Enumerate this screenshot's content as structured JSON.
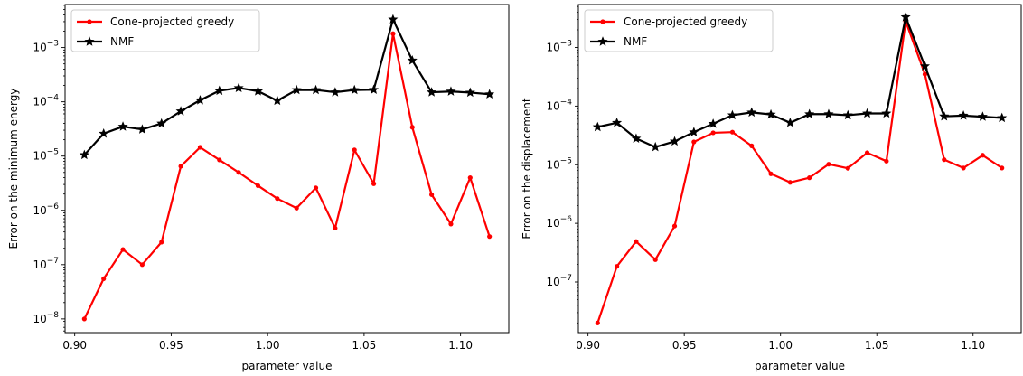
{
  "chart_data": [
    {
      "type": "line",
      "xlabel": "parameter value",
      "ylabel": "Error on the minimum energy",
      "yscale": "log",
      "xlim": [
        0.895,
        1.125
      ],
      "ylim": [
        5.6e-09,
        0.0062
      ],
      "xticks": [
        0.9,
        0.95,
        1.0,
        1.05,
        1.1
      ],
      "xtick_labels": [
        "0.90",
        "0.95",
        "1.00",
        "1.05",
        "1.10"
      ],
      "yticks": [
        1e-08,
        1e-07,
        1e-06,
        1e-05,
        0.0001,
        0.001
      ],
      "ytick_labels": [
        {
          "base": "10",
          "exp": "−8"
        },
        {
          "base": "10",
          "exp": "−7"
        },
        {
          "base": "10",
          "exp": "−6"
        },
        {
          "base": "10",
          "exp": "−5"
        },
        {
          "base": "10",
          "exp": "−4"
        },
        {
          "base": "10",
          "exp": "−3"
        }
      ],
      "legend": "upper-left",
      "grid": false,
      "x": [
        0.905,
        0.915,
        0.925,
        0.935,
        0.945,
        0.955,
        0.965,
        0.975,
        0.985,
        0.995,
        1.005,
        1.015,
        1.025,
        1.035,
        1.045,
        1.055,
        1.065,
        1.075,
        1.085,
        1.095,
        1.105,
        1.115
      ],
      "series": [
        {
          "name": "Cone-projected greedy",
          "color": "#ff0000",
          "marker": "dot",
          "values": [
            1e-08,
            5.5e-08,
            1.9e-07,
            1e-07,
            2.6e-07,
            6.5e-06,
            1.45e-05,
            8.5e-06,
            5e-06,
            2.85e-06,
            1.65e-06,
            1.1e-06,
            2.6e-06,
            4.7e-07,
            1.3e-05,
            3.1e-06,
            0.0018,
            3.4e-05,
            1.95e-06,
            5.6e-07,
            4e-06,
            3.3e-07
          ]
        },
        {
          "name": "NMF",
          "color": "#000000",
          "marker": "star",
          "values": [
            1.05e-05,
            2.6e-05,
            3.5e-05,
            3.1e-05,
            4e-05,
            6.7e-05,
            0.000107,
            0.00016,
            0.00018,
            0.000157,
            0.000105,
            0.000165,
            0.000165,
            0.00015,
            0.000165,
            0.000167,
            0.0033,
            0.00058,
            0.00015,
            0.000155,
            0.000148,
            0.000138
          ]
        }
      ]
    },
    {
      "type": "line",
      "xlabel": "parameter value",
      "ylabel": "Error on the displacement",
      "yscale": "log",
      "xlim": [
        0.895,
        1.125
      ],
      "ylim": [
        1.37e-08,
        0.0054
      ],
      "xticks": [
        0.9,
        0.95,
        1.0,
        1.05,
        1.1
      ],
      "xtick_labels": [
        "0.90",
        "0.95",
        "1.00",
        "1.05",
        "1.10"
      ],
      "yticks": [
        1e-07,
        1e-06,
        1e-05,
        0.0001,
        0.001
      ],
      "ytick_labels": [
        {
          "base": "10",
          "exp": "−7"
        },
        {
          "base": "10",
          "exp": "−6"
        },
        {
          "base": "10",
          "exp": "−5"
        },
        {
          "base": "10",
          "exp": "−4"
        },
        {
          "base": "10",
          "exp": "−3"
        }
      ],
      "legend": "upper-left",
      "grid": false,
      "x": [
        0.905,
        0.915,
        0.925,
        0.935,
        0.945,
        0.955,
        0.965,
        0.975,
        0.985,
        0.995,
        1.005,
        1.015,
        1.025,
        1.035,
        1.045,
        1.055,
        1.065,
        1.075,
        1.085,
        1.095,
        1.105,
        1.115
      ],
      "series": [
        {
          "name": "Cone-projected greedy",
          "color": "#ff0000",
          "marker": "dot",
          "values": [
            2e-08,
            1.85e-07,
            4.9e-07,
            2.4e-07,
            9e-07,
            2.45e-05,
            3.5e-05,
            3.6e-05,
            2.1e-05,
            7e-06,
            5e-06,
            6e-06,
            1.02e-05,
            8.7e-06,
            1.6e-05,
            1.15e-05,
            0.0028,
            0.00035,
            1.22e-05,
            8.8e-06,
            1.45e-05,
            8.8e-06
          ]
        },
        {
          "name": "NMF",
          "color": "#000000",
          "marker": "star",
          "values": [
            4.4e-05,
            5.2e-05,
            2.8e-05,
            2e-05,
            2.5e-05,
            3.6e-05,
            5e-05,
            7e-05,
            7.8e-05,
            7.2e-05,
            5.2e-05,
            7.3e-05,
            7.3e-05,
            7e-05,
            7.5e-05,
            7.5e-05,
            0.0033,
            0.00048,
            6.7e-05,
            6.9e-05,
            6.6e-05,
            6.3e-05
          ]
        }
      ]
    }
  ]
}
